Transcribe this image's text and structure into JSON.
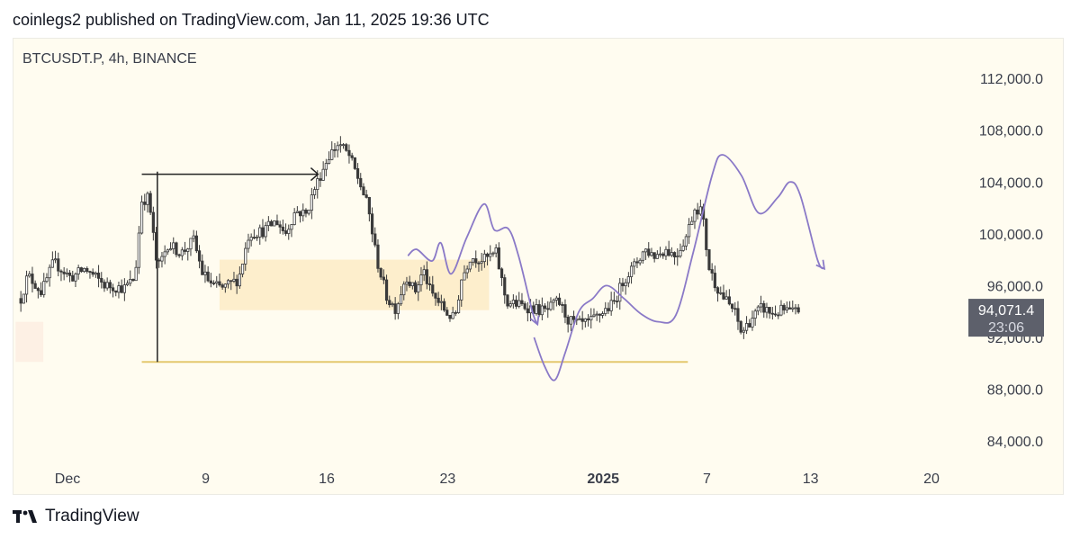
{
  "header": {
    "published": "coinlegs2 published on TradingView.com, Jan 11, 2025 19:36 UTC"
  },
  "chart": {
    "symbol": "BTCUSDT.P, 4h, BINANCE"
  },
  "price_label": {
    "price": "94,071.4",
    "countdown": "23:06",
    "color": "#5d606b"
  },
  "footer": {
    "brand": "TradingView"
  },
  "colors": {
    "candle": "#3a3a3a",
    "zone": "#fdebc6",
    "support": "#e4c86e",
    "projection": "#8a79c7",
    "background": "#fffcf0"
  },
  "chart_data": {
    "type": "candlestick",
    "symbol": "BTCUSDT.P",
    "timeframe": "4h",
    "exchange": "BINANCE",
    "x_ticks": [
      {
        "label": "Dec",
        "day": 0
      },
      {
        "label": "9",
        "day": 8
      },
      {
        "label": "16",
        "day": 15
      },
      {
        "label": "23",
        "day": 22
      },
      {
        "label": "2025",
        "day": 31,
        "bold": true
      },
      {
        "label": "7",
        "day": 37
      },
      {
        "label": "13",
        "day": 43
      },
      {
        "label": "20",
        "day": 50
      }
    ],
    "y_ticks": [
      84000,
      88000,
      92000,
      96000,
      100000,
      104000,
      108000,
      112000
    ],
    "ylim": [
      81500,
      114500
    ],
    "current_price": 94071.4,
    "price_path": [
      [
        -2.7,
        95000
      ],
      [
        -2.3,
        96800
      ],
      [
        -1.5,
        95500
      ],
      [
        -0.8,
        97800
      ],
      [
        0.2,
        96600
      ],
      [
        1.0,
        97300
      ],
      [
        2.2,
        96000
      ],
      [
        3.3,
        95800
      ],
      [
        3.9,
        96600
      ],
      [
        4.3,
        102600
      ],
      [
        4.7,
        102800
      ],
      [
        5.2,
        97200
      ],
      [
        5.8,
        99200
      ],
      [
        6.6,
        98500
      ],
      [
        7.3,
        99500
      ],
      [
        7.8,
        97000
      ],
      [
        8.4,
        96000
      ],
      [
        9.0,
        95800
      ],
      [
        9.9,
        96500
      ],
      [
        10.5,
        100000
      ],
      [
        11.3,
        100200
      ],
      [
        12.1,
        101000
      ],
      [
        12.6,
        100000
      ],
      [
        13.2,
        101800
      ],
      [
        13.8,
        101500
      ],
      [
        14.3,
        103500
      ],
      [
        15.1,
        106000
      ],
      [
        15.7,
        107000
      ],
      [
        16.3,
        106000
      ],
      [
        16.9,
        104000
      ],
      [
        17.4,
        102000
      ],
      [
        17.9,
        98000
      ],
      [
        18.5,
        95000
      ],
      [
        19.0,
        94200
      ],
      [
        19.6,
        96800
      ],
      [
        20.1,
        95500
      ],
      [
        20.6,
        97200
      ],
      [
        21.0,
        95500
      ],
      [
        21.6,
        94500
      ],
      [
        22.0,
        93800
      ],
      [
        22.4,
        93400
      ],
      [
        22.8,
        96500
      ],
      [
        23.3,
        98200
      ],
      [
        24.1,
        98000
      ],
      [
        24.8,
        98500
      ],
      [
        25.4,
        94700
      ],
      [
        26.2,
        94500
      ],
      [
        27.0,
        94200
      ],
      [
        27.7,
        94000
      ],
      [
        28.4,
        94800
      ],
      [
        29.0,
        93300
      ],
      [
        29.6,
        93000
      ],
      [
        30.2,
        93100
      ],
      [
        31.0,
        94000
      ],
      [
        31.6,
        94600
      ],
      [
        32.2,
        96500
      ],
      [
        32.8,
        97500
      ],
      [
        33.4,
        98800
      ],
      [
        34.0,
        98300
      ],
      [
        34.6,
        98800
      ],
      [
        35.2,
        98300
      ],
      [
        35.8,
        99800
      ],
      [
        36.3,
        102000
      ],
      [
        36.7,
        101900
      ],
      [
        37.1,
        97500
      ],
      [
        37.5,
        96100
      ],
      [
        38.0,
        95000
      ],
      [
        38.6,
        94000
      ],
      [
        39.0,
        92300
      ],
      [
        39.6,
        93500
      ],
      [
        40.2,
        94300
      ],
      [
        40.8,
        93800
      ],
      [
        41.4,
        94100
      ],
      [
        42.0,
        93900
      ],
      [
        42.3,
        94071
      ]
    ],
    "demand_zone": {
      "day_start": 8.8,
      "day_end": 24.4,
      "price_top": 98000,
      "price_bottom": 94100
    },
    "left_zone": {
      "day_start": -3.0,
      "day_end": -1.4,
      "price_top": 93200,
      "price_bottom": 90100
    },
    "support_line": {
      "day_start": 4.3,
      "day_end": 35.9,
      "price": 90100
    },
    "vertical_line": {
      "day": 5.2,
      "price_top": 104800,
      "price_bottom": 90100
    },
    "arrow": {
      "day_start": 4.3,
      "day_end": 14.5,
      "price": 104600
    },
    "projection_1": [
      [
        19.7,
        98300
      ],
      [
        20.2,
        98800
      ],
      [
        21.1,
        97900
      ],
      [
        21.6,
        99300
      ],
      [
        22.2,
        96900
      ],
      [
        23.1,
        99700
      ],
      [
        24.1,
        102300
      ],
      [
        24.7,
        100300
      ],
      [
        25.5,
        100400
      ],
      [
        26.1,
        98300
      ],
      [
        26.9,
        94000
      ],
      [
        27.2,
        93000
      ]
    ],
    "projection_2": [
      [
        27.0,
        92000
      ],
      [
        27.6,
        89800
      ],
      [
        28.2,
        88700
      ],
      [
        28.8,
        90800
      ],
      [
        29.6,
        94000
      ],
      [
        30.4,
        95000
      ],
      [
        31.2,
        96000
      ],
      [
        32.2,
        95000
      ],
      [
        33.2,
        93800
      ],
      [
        34.2,
        93200
      ],
      [
        35.2,
        93700
      ],
      [
        36.2,
        98500
      ],
      [
        37.3,
        104500
      ],
      [
        37.9,
        106100
      ],
      [
        39.0,
        104500
      ],
      [
        40.0,
        101600
      ],
      [
        41.1,
        102800
      ],
      [
        41.8,
        104000
      ],
      [
        42.4,
        103000
      ],
      [
        43.4,
        98000
      ],
      [
        43.8,
        97300
      ]
    ]
  }
}
